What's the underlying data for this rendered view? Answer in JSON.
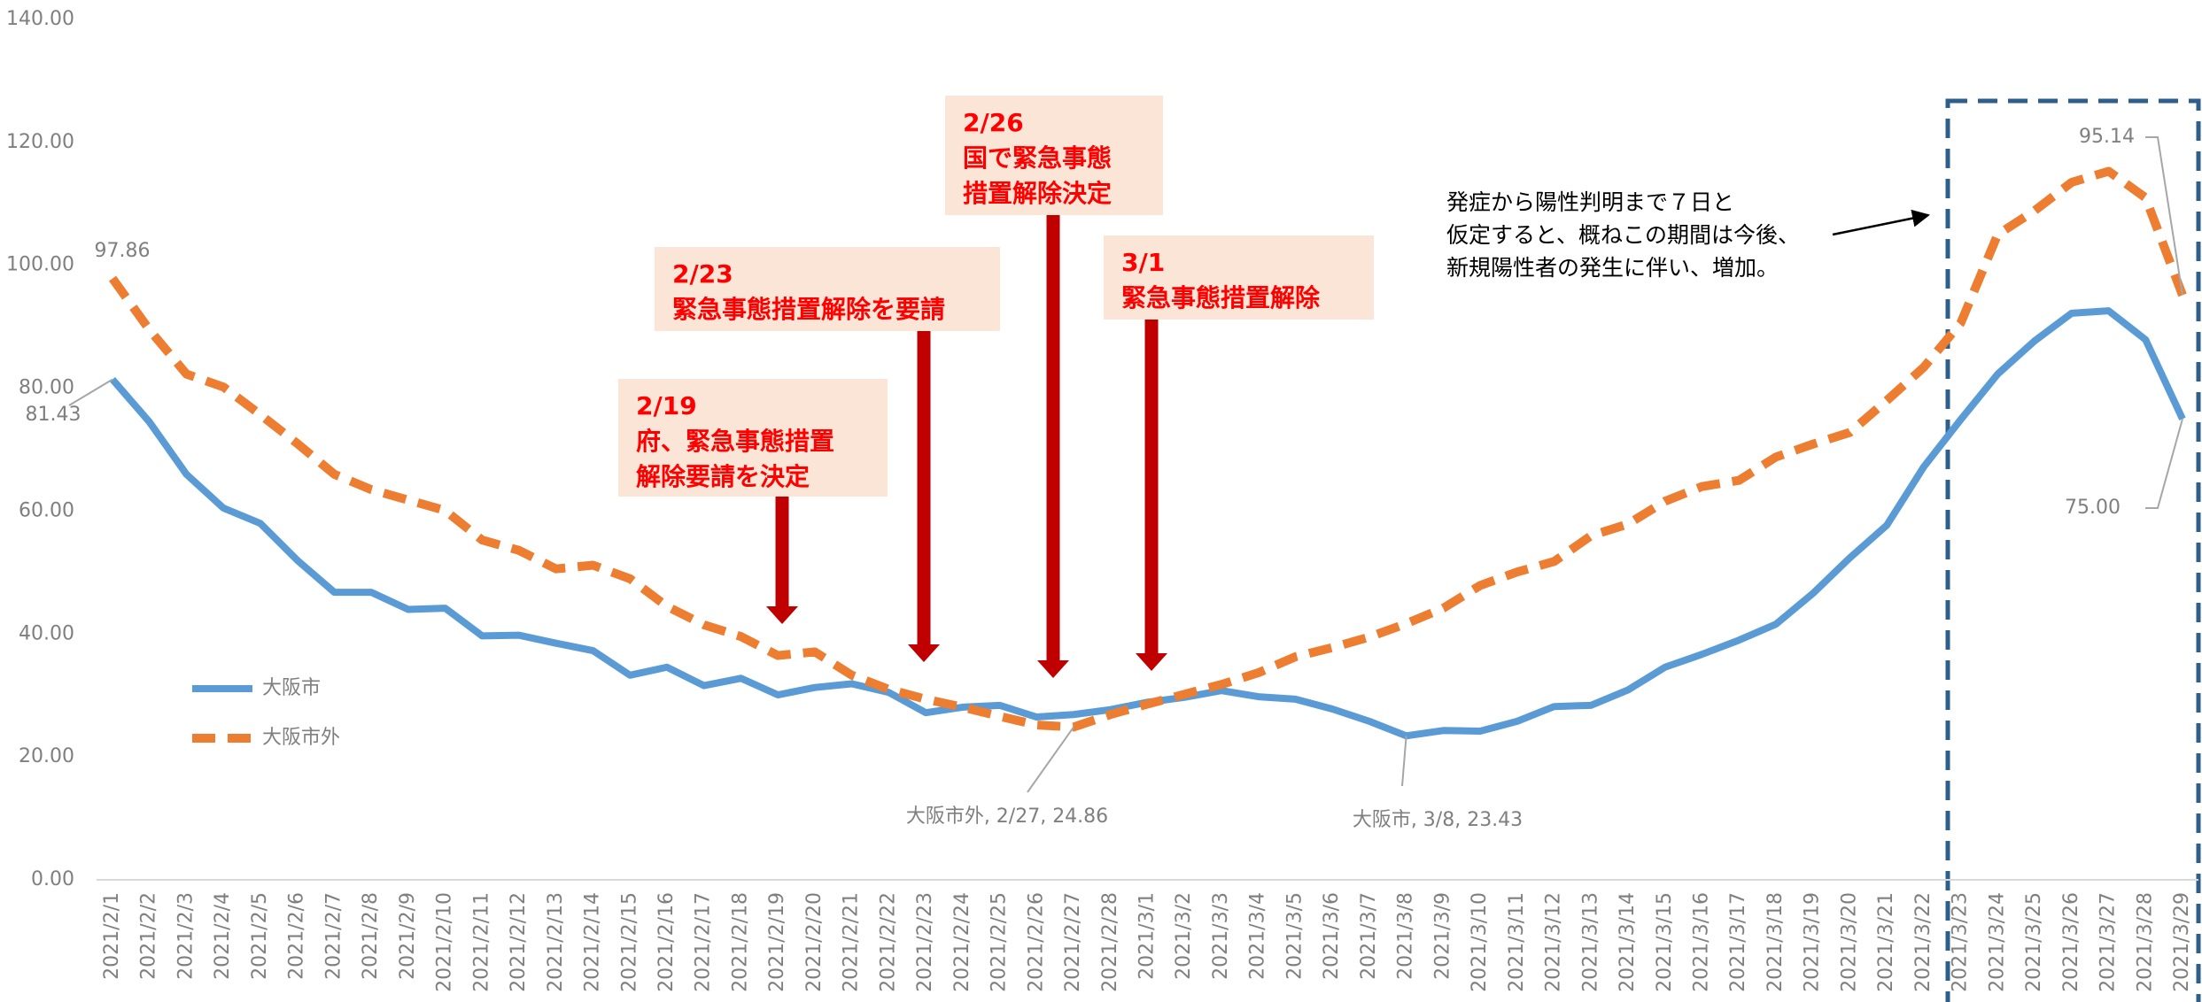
{
  "chart_data": {
    "type": "line",
    "categories": [
      "2021/2/1",
      "2021/2/2",
      "2021/2/3",
      "2021/2/4",
      "2021/2/5",
      "2021/2/6",
      "2021/2/7",
      "2021/2/8",
      "2021/2/9",
      "2021/2/10",
      "2021/2/11",
      "2021/2/12",
      "2021/2/13",
      "2021/2/14",
      "2021/2/15",
      "2021/2/16",
      "2021/2/17",
      "2021/2/18",
      "2021/2/19",
      "2021/2/20",
      "2021/2/21",
      "2021/2/22",
      "2021/2/23",
      "2021/2/24",
      "2021/2/25",
      "2021/2/26",
      "2021/2/27",
      "2021/2/28",
      "2021/3/1",
      "2021/3/2",
      "2021/3/3",
      "2021/3/4",
      "2021/3/5",
      "2021/3/6",
      "2021/3/7",
      "2021/3/8",
      "2021/3/9",
      "2021/3/10",
      "2021/3/11",
      "2021/3/12",
      "2021/3/13",
      "2021/3/14",
      "2021/3/15",
      "2021/3/16",
      "2021/3/17",
      "2021/3/18",
      "2021/3/19",
      "2021/3/20",
      "2021/3/21",
      "2021/3/22",
      "2021/3/23",
      "2021/3/24",
      "2021/3/25",
      "2021/3/26",
      "2021/3/27",
      "2021/3/28",
      "2021/3/29"
    ],
    "series": [
      {
        "name": "大阪市",
        "color": "#5b9bd5",
        "dash": false,
        "values": [
          81.43,
          74.5,
          66,
          60.5,
          58,
          52,
          46.8,
          46.8,
          44,
          44.2,
          39.7,
          39.8,
          38.5,
          37.3,
          33.3,
          34.6,
          31.6,
          32.8,
          30.1,
          31.3,
          31.9,
          30.5,
          27.2,
          28.1,
          28.4,
          26.5,
          26.9,
          27.7,
          28.9,
          29.7,
          30.8,
          29.8,
          29.4,
          27.8,
          25.8,
          23.43,
          24.3,
          24.2,
          25.8,
          28.2,
          28.4,
          30.9,
          34.6,
          36.7,
          39,
          41.6,
          46.6,
          52.4,
          57.7,
          67.2,
          74.9,
          82.3,
          87.7,
          92.2,
          92.6,
          87.9,
          75.0
        ],
        "value_labels": [
          "81.43",
          null,
          null,
          null,
          null,
          null,
          null,
          null,
          null,
          null,
          null,
          null,
          null,
          null,
          null,
          null,
          null,
          null,
          null,
          null,
          null,
          null,
          null,
          null,
          null,
          null,
          null,
          null,
          null,
          null,
          null,
          null,
          null,
          null,
          null,
          "大阪市, 3/8, 23.43",
          null,
          null,
          null,
          null,
          null,
          null,
          null,
          null,
          null,
          null,
          null,
          null,
          null,
          null,
          null,
          null,
          null,
          null,
          null,
          null,
          "75.00"
        ]
      },
      {
        "name": "大阪市外",
        "color": "#ed7d31",
        "dash": true,
        "values": [
          97.86,
          89.5,
          82.3,
          80.2,
          75.7,
          71,
          66,
          63.5,
          61.8,
          60.1,
          55.3,
          53.6,
          50.6,
          51.2,
          49,
          44.5,
          41.5,
          39.6,
          36.5,
          37.1,
          33.3,
          31,
          29.4,
          28.1,
          26.6,
          25.2,
          24.86,
          26.9,
          28.6,
          30.2,
          31.8,
          33.7,
          36.3,
          37.8,
          39.5,
          41.7,
          44.2,
          47.9,
          50.1,
          51.8,
          56,
          57.9,
          61.6,
          64,
          65,
          68.8,
          70.9,
          72.8,
          78,
          83.4,
          90.6,
          105,
          108.9,
          113.5,
          115.3,
          111,
          95.14
        ],
        "value_labels": [
          "97.86",
          null,
          null,
          null,
          null,
          null,
          null,
          null,
          null,
          null,
          null,
          null,
          null,
          null,
          null,
          null,
          null,
          null,
          null,
          null,
          null,
          null,
          null,
          null,
          null,
          null,
          "大阪市外, 2/27, 24.86",
          null,
          null,
          null,
          null,
          null,
          null,
          null,
          null,
          null,
          null,
          null,
          null,
          null,
          null,
          null,
          null,
          null,
          null,
          null,
          null,
          null,
          null,
          null,
          null,
          null,
          null,
          null,
          null,
          null,
          "95.14"
        ]
      }
    ],
    "ylim": [
      0,
      140
    ],
    "yticks": [
      {
        "value": 0,
        "label": "0.00"
      },
      {
        "value": 20,
        "label": "20.00"
      },
      {
        "value": 40,
        "label": "40.00"
      },
      {
        "value": 60,
        "label": "60.00"
      },
      {
        "value": 80,
        "label": "80.00"
      },
      {
        "value": 100,
        "label": "100.00"
      },
      {
        "value": 120,
        "label": "120.00"
      },
      {
        "value": 140,
        "label": "140.00"
      }
    ],
    "grid": false,
    "legend": "left",
    "annotations": [
      {
        "lines": [
          "2/19",
          "府、緊急事態措置",
          "解除要請を決定"
        ]
      },
      {
        "lines": [
          "2/23",
          "緊急事態措置解除を要請"
        ]
      },
      {
        "lines": [
          "2/26",
          "国で緊急事態",
          "措置解除決定"
        ]
      },
      {
        "lines": [
          "3/1",
          "緊急事態措置解除"
        ]
      }
    ],
    "note": [
      "発症から陽性判明まで７日と",
      "仮定すると、概ねこの期間は今後、",
      "新規陽性者の発生に伴い、増加。"
    ]
  }
}
